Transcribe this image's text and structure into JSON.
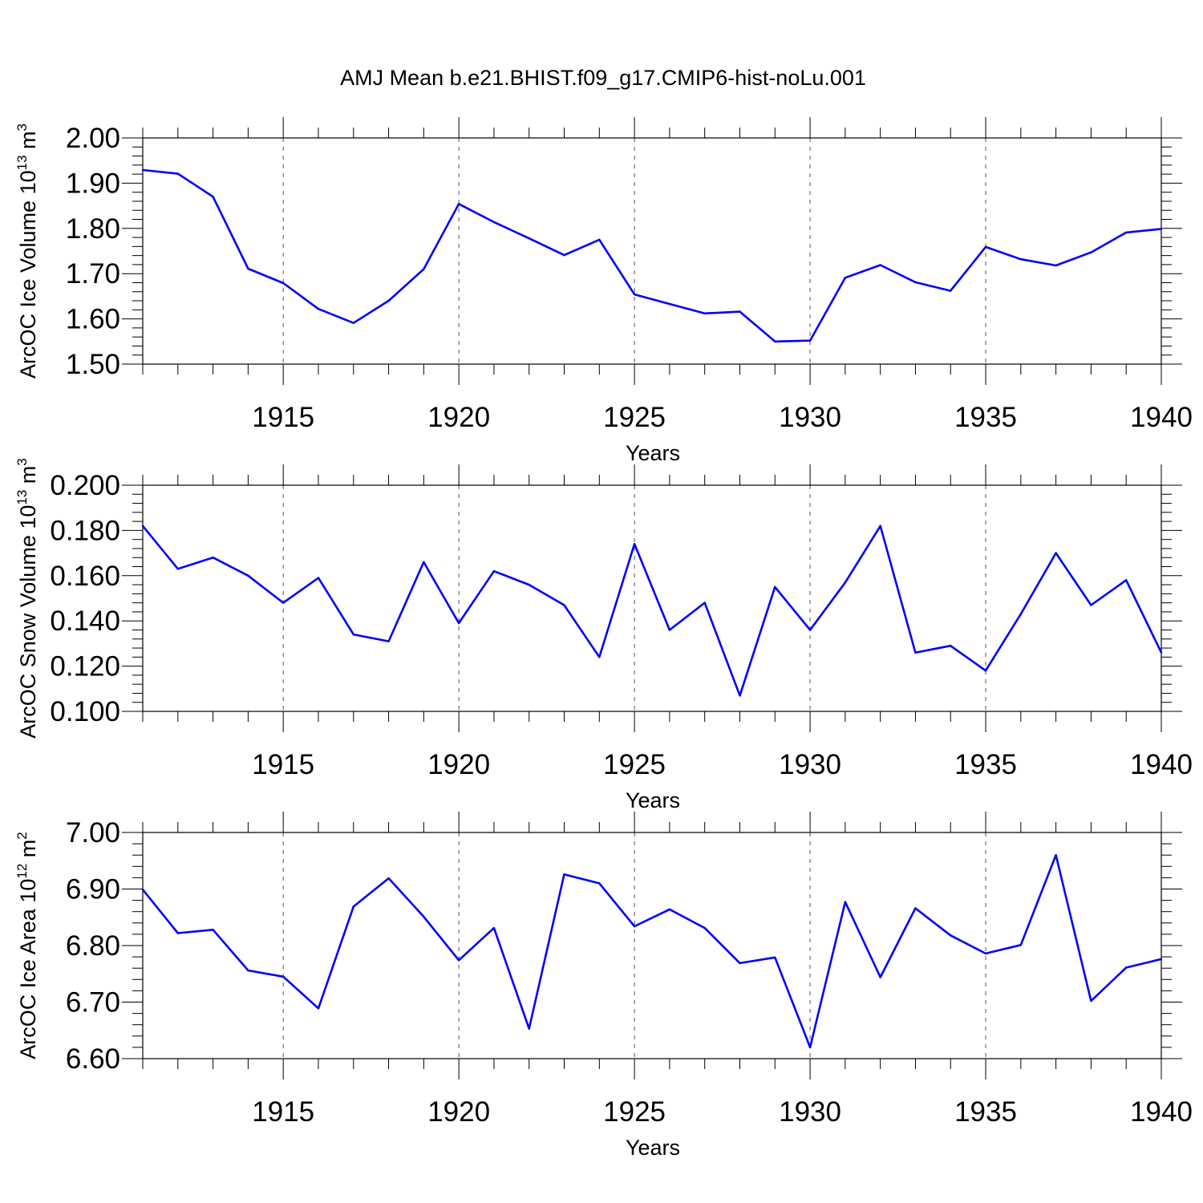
{
  "title": "AMJ Mean b.e21.BHIST.f09_g17.CMIP6-hist-noLu.001",
  "colors": {
    "line": "#0000ff",
    "axis": "#000000",
    "grid": "#555555",
    "background": "#ffffff"
  },
  "chart_data": [
    {
      "type": "line",
      "ylabel": "ArcOC Ice Volume 10",
      "ylabel_sup1": "13",
      "ylabel_mid": " m",
      "ylabel_sup2": "3",
      "xlabel": "Years",
      "xlim": [
        1911,
        1940
      ],
      "ylim": [
        1.5,
        2.0
      ],
      "yticks": [
        "2.00",
        "1.90",
        "1.80",
        "1.70",
        "1.60",
        "1.50"
      ],
      "xticks": [
        "1915",
        "1920",
        "1925",
        "1930",
        "1935",
        "1940"
      ],
      "grid": "dashed vertical at 1915, 1920, 1925, 1930, 1935",
      "x": [
        1911,
        1912,
        1913,
        1914,
        1915,
        1916,
        1917,
        1918,
        1919,
        1920,
        1921,
        1922,
        1923,
        1924,
        1925,
        1926,
        1927,
        1928,
        1929,
        1930,
        1931,
        1932,
        1933,
        1934,
        1935,
        1936,
        1937,
        1938,
        1939,
        1940
      ],
      "values": [
        1.929,
        1.921,
        1.87,
        1.711,
        1.679,
        1.622,
        1.591,
        1.64,
        1.71,
        1.854,
        1.814,
        1.778,
        1.741,
        1.775,
        1.654,
        1.633,
        1.612,
        1.616,
        1.55,
        1.552,
        1.691,
        1.719,
        1.681,
        1.662,
        1.759,
        1.732,
        1.718,
        1.747,
        1.791,
        1.799
      ]
    },
    {
      "type": "line",
      "ylabel": "ArcOC Snow Volume 10",
      "ylabel_sup1": "13",
      "ylabel_mid": " m",
      "ylabel_sup2": "3",
      "xlabel": "Years",
      "xlim": [
        1911,
        1940
      ],
      "ylim": [
        0.1,
        0.2
      ],
      "yticks": [
        "0.200",
        "0.180",
        "0.160",
        "0.140",
        "0.120",
        "0.100"
      ],
      "xticks": [
        "1915",
        "1920",
        "1925",
        "1930",
        "1935",
        "1940"
      ],
      "grid": "dashed vertical at 1915, 1920, 1925, 1930, 1935",
      "x": [
        1911,
        1912,
        1913,
        1914,
        1915,
        1916,
        1917,
        1918,
        1919,
        1920,
        1921,
        1922,
        1923,
        1924,
        1925,
        1926,
        1927,
        1928,
        1929,
        1930,
        1931,
        1932,
        1933,
        1934,
        1935,
        1936,
        1937,
        1938,
        1939,
        1940
      ],
      "values": [
        0.182,
        0.163,
        0.168,
        0.16,
        0.148,
        0.159,
        0.134,
        0.131,
        0.166,
        0.139,
        0.162,
        0.156,
        0.147,
        0.124,
        0.174,
        0.136,
        0.148,
        0.107,
        0.155,
        0.136,
        0.157,
        0.182,
        0.126,
        0.129,
        0.118,
        0.143,
        0.17,
        0.147,
        0.158,
        0.126
      ]
    },
    {
      "type": "line",
      "ylabel": "ArcOC Ice Area 10",
      "ylabel_sup1": "12",
      "ylabel_mid": " m",
      "ylabel_sup2": "2",
      "xlabel": "Years",
      "xlim": [
        1911,
        1940
      ],
      "ylim": [
        6.6,
        7.0
      ],
      "yticks": [
        "7.00",
        "6.90",
        "6.80",
        "6.70",
        "6.60"
      ],
      "xticks": [
        "1915",
        "1920",
        "1925",
        "1930",
        "1935",
        "1940"
      ],
      "grid": "dashed vertical at 1915, 1920, 1925, 1930, 1935",
      "x": [
        1911,
        1912,
        1913,
        1914,
        1915,
        1916,
        1917,
        1918,
        1919,
        1920,
        1921,
        1922,
        1923,
        1924,
        1925,
        1926,
        1927,
        1928,
        1929,
        1930,
        1931,
        1932,
        1933,
        1934,
        1935,
        1936,
        1937,
        1938,
        1939,
        1940
      ],
      "values": [
        6.899,
        6.822,
        6.828,
        6.756,
        6.745,
        6.689,
        6.869,
        6.919,
        6.851,
        6.774,
        6.831,
        6.653,
        6.926,
        6.91,
        6.834,
        6.864,
        6.831,
        6.769,
        6.779,
        6.62,
        6.877,
        6.744,
        6.866,
        6.818,
        6.786,
        6.801,
        6.96,
        6.702,
        6.761,
        6.776
      ]
    }
  ]
}
